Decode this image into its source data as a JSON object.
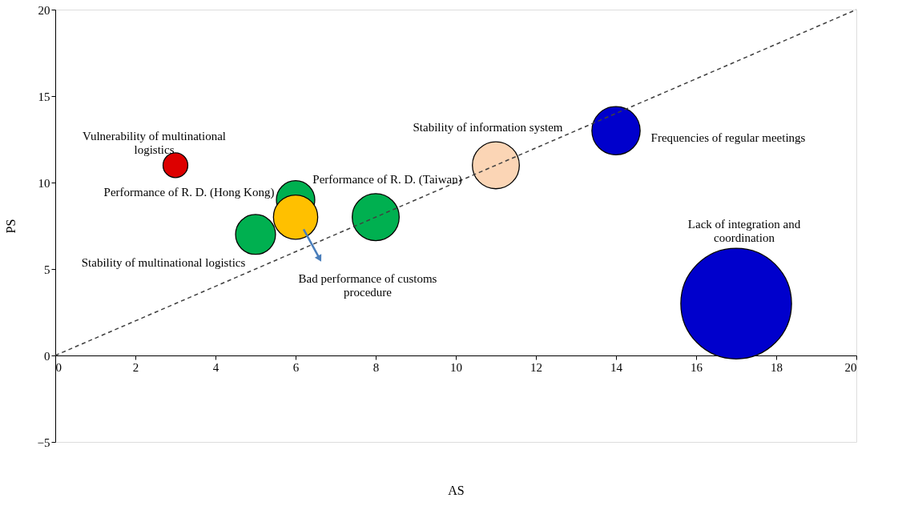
{
  "chart_data": {
    "type": "bubble",
    "xlabel": "AS",
    "ylabel": "PS",
    "xlim": [
      0,
      20
    ],
    "xticks": [
      0,
      2,
      4,
      6,
      8,
      10,
      12,
      14,
      16,
      18,
      20
    ],
    "ylim": [
      -5,
      20
    ],
    "yticks": [
      -5,
      0,
      5,
      10,
      15,
      20
    ],
    "grid": false,
    "legend": false,
    "series": [
      {
        "x": [
          3,
          5,
          6,
          8,
          6,
          11,
          14,
          17
        ],
        "values": [
          11,
          7,
          9,
          8,
          8,
          11,
          13,
          3
        ],
        "sizes": [
          0.05,
          0.13,
          0.12,
          0.18,
          0.16,
          0.18,
          0.19,
          1
        ],
        "colors": [
          "#dd0000",
          "#00b050",
          "#00b050",
          "#00b050",
          "#ffc000",
          "#fbd5b5",
          "#0000cc",
          "#0000cc"
        ]
      },
      {
        "type": "line",
        "x": [
          0,
          20
        ],
        "values": [
          0,
          20
        ],
        "color": "#404040",
        "line_style": "dashed"
      }
    ],
    "annotations": [
      {
        "text": "Vulnerability of multinational\nlogistics",
        "x": 3,
        "y": 11
      },
      {
        "text": "Performance of R. D. (Hong Kong)",
        "x": 6,
        "y": 9
      },
      {
        "text": "Performance of R. D. (Taiwan)",
        "x": 8,
        "y": 8
      },
      {
        "text": "Stability of multinational logistics",
        "x": 5,
        "y": 7
      },
      "Bad performance of customs\nprocedure",
      {
        "text": "Stability of information system",
        "x": 11,
        "y": 11
      },
      {
        "text": "Frequencies of regular meetings",
        "x": 14,
        "y": 13
      },
      "Lack of integration and\ncoordination"
    ]
  }
}
